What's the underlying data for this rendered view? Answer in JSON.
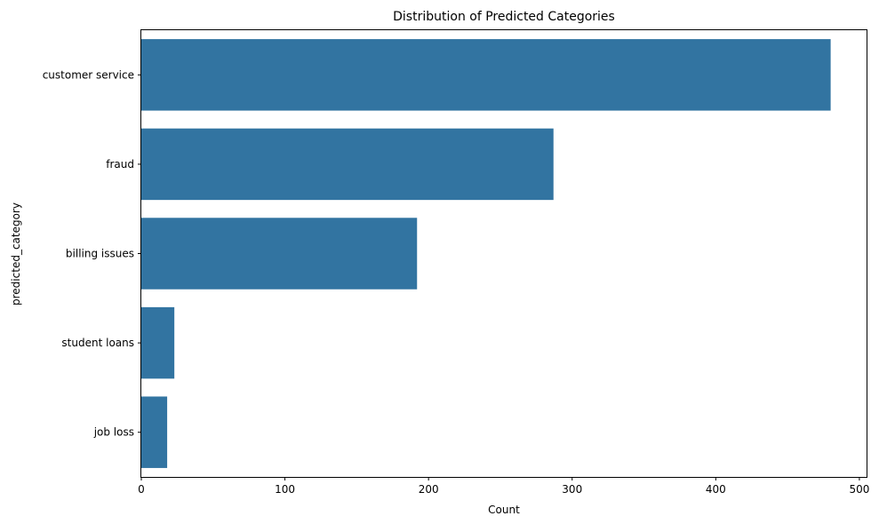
{
  "chart_data": {
    "type": "bar",
    "orientation": "horizontal",
    "title": "Distribution of Predicted Categories",
    "xlabel": "Count",
    "ylabel": "predicted_category",
    "categories": [
      "customer service",
      "fraud",
      "billing issues",
      "student loans",
      "job loss"
    ],
    "values": [
      480,
      287,
      192,
      23,
      18
    ],
    "xlim": [
      0,
      505
    ],
    "xticks": [
      0,
      100,
      200,
      300,
      400,
      500
    ],
    "grid": false,
    "bar_color": "#3274a1"
  }
}
